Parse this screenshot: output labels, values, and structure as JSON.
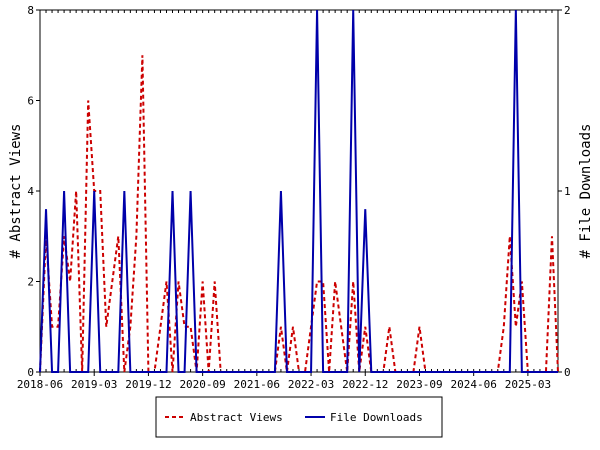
{
  "chart_data": {
    "type": "line",
    "y_left": {
      "label": "# Abstract Views",
      "range": [
        0,
        8
      ],
      "ticks": [
        0,
        2,
        4,
        6,
        8
      ]
    },
    "y_right": {
      "label": "# File Downloads",
      "range": [
        0,
        2
      ],
      "ticks": [
        0,
        1,
        2
      ]
    },
    "x_tick_labels": [
      "2018-06",
      "2019-03",
      "2019-12",
      "2020-09",
      "2021-06",
      "2022-03",
      "2022-12",
      "2023-09",
      "2024-06",
      "2025-03"
    ],
    "x_tick_label_index": [
      0,
      9,
      18,
      27,
      36,
      45,
      54,
      63,
      72,
      81
    ],
    "x_count": 87,
    "legend_position": "bottom-center",
    "series": [
      {
        "name": "Abstract Views",
        "axis": "left",
        "color": "#cc0000",
        "style": "dashed",
        "values": [
          0,
          3,
          1,
          1,
          3,
          2,
          4,
          0,
          6,
          4,
          4,
          1,
          2,
          3,
          0,
          1,
          3,
          7,
          0,
          0,
          1,
          2,
          0,
          2,
          1,
          1,
          0,
          2,
          0,
          2,
          0,
          0,
          0,
          0,
          0,
          0,
          0,
          0,
          0,
          0,
          1,
          0,
          1,
          0,
          0,
          1,
          2,
          2,
          0,
          2,
          1,
          0,
          2,
          0,
          1,
          0,
          0,
          0,
          1,
          0,
          0,
          0,
          0,
          1,
          0,
          0,
          0,
          0,
          0,
          0,
          0,
          0,
          0,
          0,
          0,
          0,
          0,
          1,
          3,
          1,
          2,
          0,
          0,
          0,
          0,
          3,
          0
        ]
      },
      {
        "name": "File Downloads",
        "axis": "right",
        "color": "#0000aa",
        "style": "solid",
        "values": [
          0,
          0.9,
          0,
          0,
          1,
          0,
          0,
          0,
          0,
          1,
          0,
          0,
          0,
          0,
          1,
          0,
          0,
          0,
          0,
          0,
          0,
          0,
          1,
          0,
          0,
          1,
          0,
          0,
          0,
          0,
          0,
          0,
          0,
          0,
          0,
          0,
          0,
          0,
          0,
          0,
          1,
          0,
          0,
          0,
          0,
          0,
          2,
          0,
          0,
          0,
          0,
          0,
          2,
          0,
          0.9,
          0,
          0,
          0,
          0,
          0,
          0,
          0,
          0,
          0,
          0,
          0,
          0,
          0,
          0,
          0,
          0,
          0,
          0,
          0,
          0,
          0,
          0,
          0,
          0,
          2,
          0,
          0,
          0,
          0,
          0,
          0,
          0
        ]
      }
    ]
  }
}
